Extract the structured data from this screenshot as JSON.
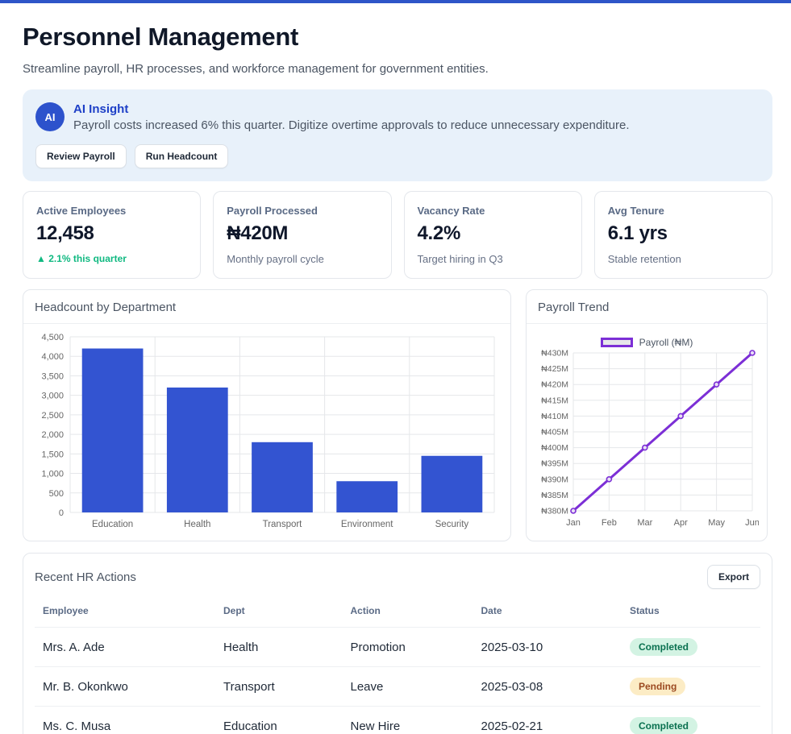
{
  "colors": {
    "topbar": "#2e55c8",
    "accent_blue": "#2d52cc",
    "bar_blue": "#3354d1",
    "line_purple": "#7c2fd6",
    "positive_green": "#10b981",
    "ai_card_bg": "#e8f1fa"
  },
  "header": {
    "title": "Personnel Management",
    "subtitle": "Streamline payroll, HR processes, and workforce management for government entities."
  },
  "ai_insight": {
    "avatar": "AI",
    "title": "AI Insight",
    "message": "Payroll costs increased 6% this quarter. Digitize overtime approvals to reduce unnecessary expenditure.",
    "actions": [
      {
        "label": "Review Payroll"
      },
      {
        "label": "Run Headcount"
      }
    ]
  },
  "stats": [
    {
      "label": "Active Employees",
      "value": "12,458",
      "note": "▲ 2.1% this quarter",
      "note_type": "up"
    },
    {
      "label": "Payroll Processed",
      "value": "₦420M",
      "note": "Monthly payroll cycle",
      "note_type": "muted"
    },
    {
      "label": "Vacancy Rate",
      "value": "4.2%",
      "note": "Target hiring in Q3",
      "note_type": "muted"
    },
    {
      "label": "Avg Tenure",
      "value": "6.1 yrs",
      "note": "Stable retention",
      "note_type": "muted"
    }
  ],
  "chart_data": [
    {
      "type": "bar",
      "title": "Headcount by Department",
      "categories": [
        "Education",
        "Health",
        "Transport",
        "Environment",
        "Security"
      ],
      "values": [
        4200,
        3200,
        1800,
        800,
        1450
      ],
      "ylim": [
        0,
        4500
      ],
      "ytick_step": 500,
      "bar_color": "#3354d1",
      "grid": true,
      "legend_position": "none",
      "xlabel": "",
      "ylabel": ""
    },
    {
      "type": "line",
      "title": "Payroll Trend",
      "legend_label": "Payroll (₦M)",
      "x": [
        "Jan",
        "Feb",
        "Mar",
        "Apr",
        "May",
        "Jun"
      ],
      "values": [
        380,
        390,
        400,
        410,
        420,
        430
      ],
      "ylim": [
        380,
        430
      ],
      "ytick_step": 5,
      "ytick_prefix": "₦",
      "ytick_suffix": "M",
      "line_color": "#7c2fd6",
      "grid": true,
      "legend_position": "top",
      "xlabel": "",
      "ylabel": ""
    }
  ],
  "table": {
    "title": "Recent HR Actions",
    "export_label": "Export",
    "columns": [
      "Employee",
      "Dept",
      "Action",
      "Date",
      "Status"
    ],
    "rows": [
      {
        "employee": "Mrs. A. Ade",
        "dept": "Health",
        "action": "Promotion",
        "date": "2025-03-10",
        "status": "Completed"
      },
      {
        "employee": "Mr. B. Okonkwo",
        "dept": "Transport",
        "action": "Leave",
        "date": "2025-03-08",
        "status": "Pending"
      },
      {
        "employee": "Ms. C. Musa",
        "dept": "Education",
        "action": "New Hire",
        "date": "2025-02-21",
        "status": "Completed"
      }
    ],
    "status_styles": {
      "Completed": {
        "bg": "#d3f3e3",
        "color": "#0a7150"
      },
      "Pending": {
        "bg": "#fcecc5",
        "color": "#9c4a21"
      }
    }
  }
}
